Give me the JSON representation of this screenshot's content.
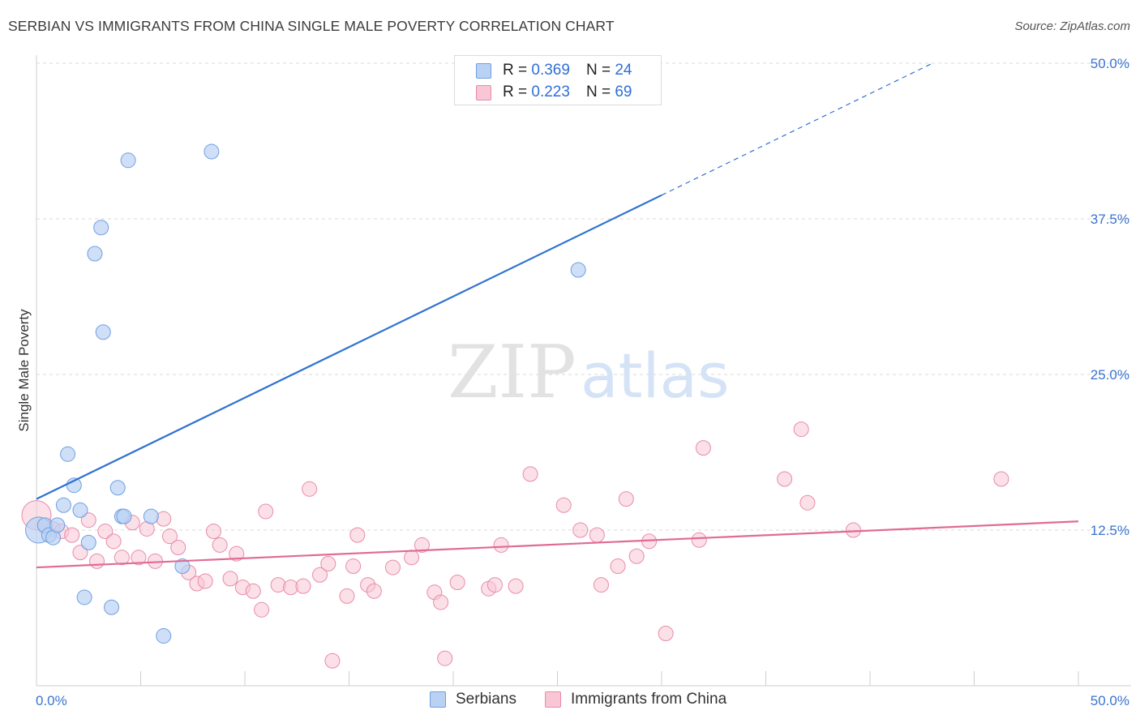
{
  "header": {
    "title": "SERBIAN VS IMMIGRANTS FROM CHINA SINGLE MALE POVERTY CORRELATION CHART",
    "source": "Source: ZipAtlas.com"
  },
  "watermark": {
    "zip": "ZIP",
    "atlas": "atlas"
  },
  "legend": {
    "r_label": "R =",
    "n_label": "N =",
    "rows": [
      {
        "name": "Serbians",
        "r": "0.369",
        "n": "24"
      },
      {
        "name": "Immigrants from China",
        "r": "0.223",
        "n": "69"
      }
    ]
  },
  "colors": {
    "serbians_fill": "#b9d2f3",
    "serbians_stroke": "#6f9fe0",
    "serbians_line": "#2f72d0",
    "china_fill": "#f8c6d5",
    "china_stroke": "#e98aab",
    "china_line": "#e06b95",
    "axis_label": "#3a74d0",
    "grid": "#d8d8d8"
  },
  "chart_data": {
    "type": "scatter",
    "title": "SERBIAN VS IMMIGRANTS FROM CHINA SINGLE MALE POVERTY CORRELATION CHART",
    "xlabel": "",
    "ylabel": "Single Male Poverty",
    "xlim": [
      0,
      50
    ],
    "ylim": [
      0,
      50
    ],
    "x_tick_labels": [
      "0.0%",
      "50.0%"
    ],
    "y_ticks": [
      12.5,
      25.0,
      37.5,
      50.0
    ],
    "y_tick_labels": [
      "12.5%",
      "25.0%",
      "37.5%",
      "50.0%"
    ],
    "grid": true,
    "legend_position": "top-center",
    "series": [
      {
        "name": "Serbians",
        "r": 0.369,
        "n": 24,
        "points": [
          [
            0.1,
            12.5
          ],
          [
            0.4,
            12.9
          ],
          [
            0.6,
            12.1
          ],
          [
            0.8,
            11.9
          ],
          [
            1.0,
            12.9
          ],
          [
            1.3,
            14.5
          ],
          [
            1.5,
            18.6
          ],
          [
            1.8,
            16.1
          ],
          [
            2.1,
            14.1
          ],
          [
            2.3,
            7.1
          ],
          [
            2.5,
            11.5
          ],
          [
            2.8,
            34.7
          ],
          [
            3.1,
            36.8
          ],
          [
            3.2,
            28.4
          ],
          [
            3.6,
            6.3
          ],
          [
            3.9,
            15.9
          ],
          [
            4.1,
            13.6
          ],
          [
            4.2,
            13.6
          ],
          [
            4.4,
            42.2
          ],
          [
            5.5,
            13.6
          ],
          [
            6.1,
            4.0
          ],
          [
            7.0,
            9.6
          ],
          [
            8.4,
            42.9
          ],
          [
            26.0,
            33.4
          ]
        ],
        "trend": {
          "x0": 0,
          "y0": 15.0,
          "x1": 30,
          "y1": 39.4,
          "dashed_to_x": 43,
          "dashed_to_y": 50.0
        }
      },
      {
        "name": "Immigrants from China",
        "r": 0.223,
        "n": 69,
        "points": [
          [
            0.0,
            13.7
          ],
          [
            0.4,
            12.8
          ],
          [
            0.8,
            12.6
          ],
          [
            1.2,
            12.4
          ],
          [
            1.7,
            12.1
          ],
          [
            2.1,
            10.7
          ],
          [
            2.5,
            13.3
          ],
          [
            2.9,
            10.0
          ],
          [
            3.3,
            12.4
          ],
          [
            3.7,
            11.6
          ],
          [
            4.1,
            10.3
          ],
          [
            4.6,
            13.1
          ],
          [
            4.9,
            10.3
          ],
          [
            5.3,
            12.6
          ],
          [
            5.7,
            10.0
          ],
          [
            6.1,
            13.4
          ],
          [
            6.4,
            12.0
          ],
          [
            6.8,
            11.1
          ],
          [
            7.3,
            9.1
          ],
          [
            7.7,
            8.2
          ],
          [
            8.1,
            8.4
          ],
          [
            8.5,
            12.4
          ],
          [
            8.8,
            11.3
          ],
          [
            9.3,
            8.6
          ],
          [
            9.6,
            10.6
          ],
          [
            9.9,
            7.9
          ],
          [
            10.4,
            7.6
          ],
          [
            10.8,
            6.1
          ],
          [
            11.0,
            14.0
          ],
          [
            11.6,
            8.1
          ],
          [
            12.2,
            7.9
          ],
          [
            12.8,
            8.0
          ],
          [
            13.1,
            15.8
          ],
          [
            13.6,
            8.9
          ],
          [
            14.0,
            9.8
          ],
          [
            14.2,
            2.0
          ],
          [
            14.9,
            7.2
          ],
          [
            15.2,
            9.6
          ],
          [
            15.4,
            12.1
          ],
          [
            15.9,
            8.1
          ],
          [
            16.2,
            7.6
          ],
          [
            17.1,
            9.5
          ],
          [
            18.0,
            10.3
          ],
          [
            18.5,
            11.3
          ],
          [
            19.1,
            7.5
          ],
          [
            19.4,
            6.7
          ],
          [
            19.6,
            2.2
          ],
          [
            20.2,
            8.3
          ],
          [
            21.7,
            7.8
          ],
          [
            22.0,
            8.1
          ],
          [
            22.3,
            11.3
          ],
          [
            23.0,
            8.0
          ],
          [
            23.7,
            17.0
          ],
          [
            25.3,
            14.5
          ],
          [
            26.1,
            12.5
          ],
          [
            26.9,
            12.1
          ],
          [
            27.1,
            8.1
          ],
          [
            27.9,
            9.6
          ],
          [
            28.3,
            15.0
          ],
          [
            28.8,
            10.4
          ],
          [
            29.4,
            11.6
          ],
          [
            30.2,
            4.2
          ],
          [
            31.8,
            11.7
          ],
          [
            32.0,
            19.1
          ],
          [
            35.9,
            16.6
          ],
          [
            36.7,
            20.6
          ],
          [
            37.0,
            14.7
          ],
          [
            39.2,
            12.5
          ],
          [
            46.3,
            16.6
          ]
        ],
        "trend": {
          "x0": 0,
          "y0": 9.5,
          "x1": 50,
          "y1": 13.2
        }
      }
    ]
  }
}
